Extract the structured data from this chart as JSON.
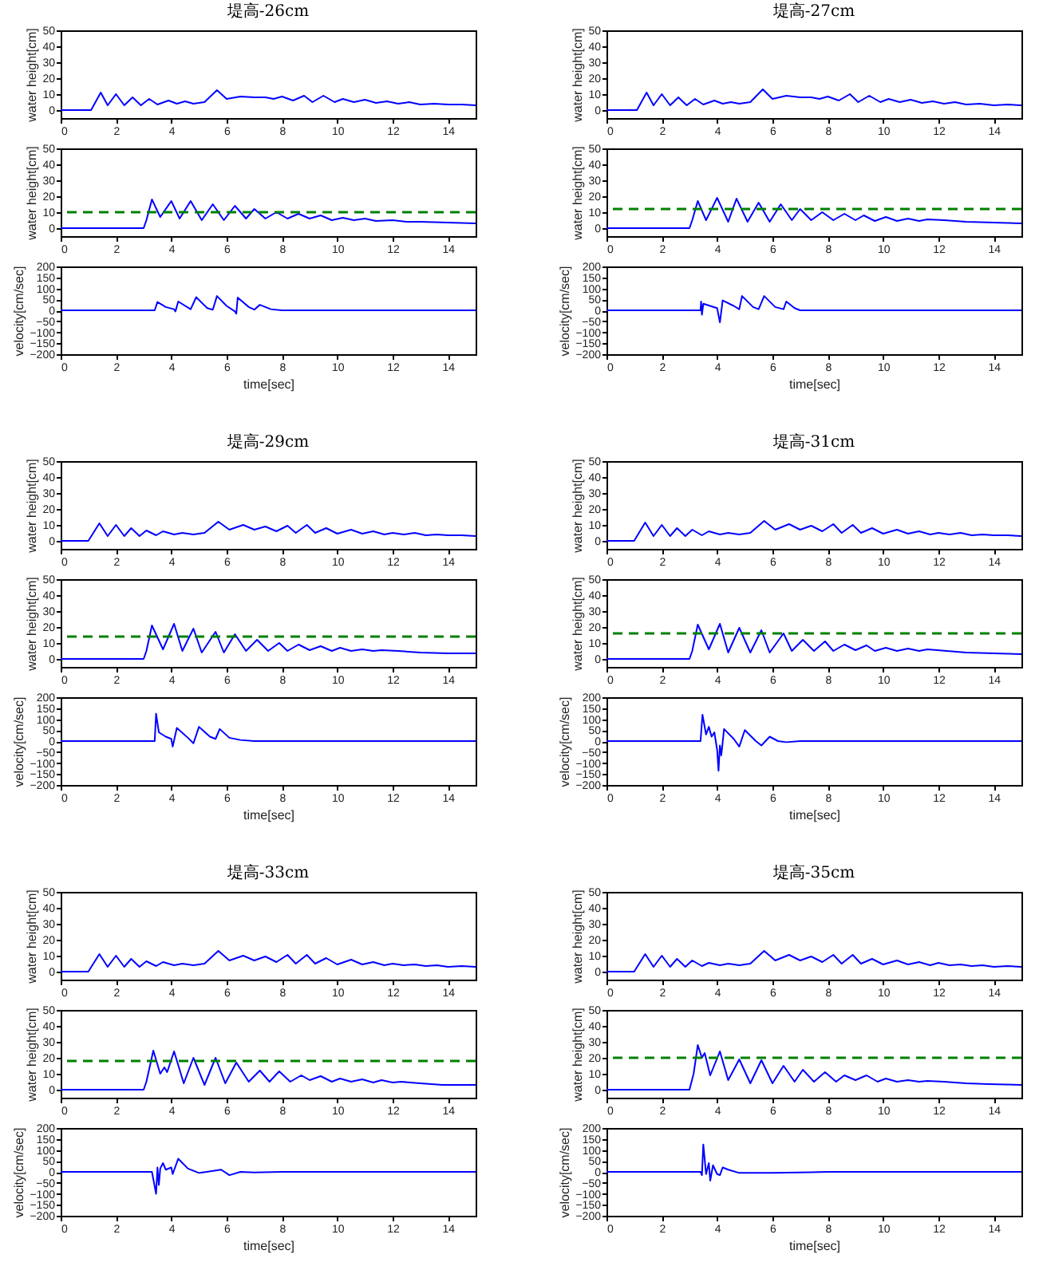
{
  "chart_data": [
    {
      "type": "line",
      "title": "堤高-26cm",
      "ylabel": "water height[cm]",
      "xlim": [
        0,
        15
      ],
      "xticks": [
        0,
        2,
        4,
        6,
        8,
        10,
        12,
        14
      ],
      "ylim": [
        -5,
        50
      ],
      "yticks": [
        0,
        10,
        20,
        30,
        40,
        50
      ],
      "x": [
        0,
        1.1,
        1.45,
        1.7,
        2.0,
        2.3,
        2.6,
        2.9,
        3.2,
        3.5,
        3.9,
        4.2,
        4.5,
        4.8,
        5.2,
        5.65,
        6.0,
        6.5,
        7.0,
        7.4,
        7.7,
        8.0,
        8.4,
        8.8,
        9.1,
        9.5,
        9.9,
        10.2,
        10.6,
        11.0,
        11.4,
        11.8,
        12.2,
        12.6,
        13.0,
        13.5,
        14,
        14.5,
        15
      ],
      "series": [
        {
          "color": "#0000ff",
          "values": [
            0,
            0,
            11,
            3,
            10,
            3,
            8,
            3,
            7,
            3.5,
            6,
            4,
            5.5,
            4,
            5,
            12.5,
            7,
            8.5,
            8,
            8,
            7,
            8.5,
            6,
            9,
            5,
            9,
            5,
            7,
            5,
            6.5,
            4.5,
            5.5,
            4,
            5,
            3.5,
            4,
            3.5,
            3.5,
            3
          ]
        }
      ]
    },
    {
      "type": "line",
      "ylabel": "water height[cm]",
      "xlim": [
        0,
        15
      ],
      "xticks": [
        0,
        2,
        4,
        6,
        8,
        10,
        12,
        14
      ],
      "ylim": [
        -5,
        50
      ],
      "yticks": [
        0,
        10,
        20,
        30,
        40,
        50
      ],
      "x": [
        0,
        3.0,
        3.1,
        3.3,
        3.6,
        4.0,
        4.3,
        4.7,
        5.1,
        5.5,
        5.9,
        6.3,
        6.7,
        7.0,
        7.4,
        7.8,
        8.2,
        8.6,
        9.0,
        9.4,
        9.8,
        10.2,
        10.6,
        11.0,
        11.4,
        12.0,
        12.5,
        13.0,
        14.0,
        15
      ],
      "series": [
        {
          "color": "#0000ff",
          "values": [
            0,
            0,
            5,
            18,
            7,
            17,
            6,
            17,
            5,
            15,
            5,
            14,
            6,
            12,
            6,
            10,
            6,
            9,
            6,
            8,
            5,
            6.5,
            5,
            6,
            4.5,
            5,
            4,
            4,
            3.5,
            3
          ]
        }
      ],
      "ref_lines": [
        {
          "axis": "y",
          "value": 10,
          "color": "#008000",
          "line_style": "dashed"
        }
      ]
    },
    {
      "type": "line",
      "xlabel": "time[sec]",
      "ylabel": "velocity[cm/sec]",
      "xlim": [
        0,
        15
      ],
      "xticks": [
        0,
        2,
        4,
        6,
        8,
        10,
        12,
        14
      ],
      "ylim": [
        -200,
        200
      ],
      "yticks": [
        -200,
        -150,
        -100,
        -50,
        0,
        50,
        100,
        150,
        200
      ],
      "x": [
        0,
        3.4,
        3.5,
        3.8,
        4.1,
        4.15,
        4.25,
        4.7,
        4.9,
        5.3,
        5.5,
        5.65,
        6.0,
        6.3,
        6.35,
        6.4,
        6.8,
        7.0,
        7.2,
        7.6,
        8.0,
        15
      ],
      "series": [
        {
          "color": "#0000ff",
          "values": [
            0,
            0,
            38,
            15,
            5,
            -5,
            40,
            5,
            60,
            10,
            3,
            65,
            20,
            -5,
            -15,
            58,
            15,
            3,
            25,
            5,
            0,
            0
          ]
        }
      ]
    },
    {
      "type": "line",
      "title": "堤高-27cm",
      "ylabel": "water height[cm]",
      "xlim": [
        0,
        15
      ],
      "xticks": [
        0,
        2,
        4,
        6,
        8,
        10,
        12,
        14
      ],
      "ylim": [
        -5,
        50
      ],
      "yticks": [
        0,
        10,
        20,
        30,
        40,
        50
      ],
      "x": [
        0,
        1.1,
        1.45,
        1.7,
        2.0,
        2.3,
        2.6,
        2.9,
        3.2,
        3.5,
        3.9,
        4.2,
        4.5,
        4.8,
        5.2,
        5.65,
        6.0,
        6.5,
        7.0,
        7.4,
        7.7,
        8.0,
        8.4,
        8.8,
        9.1,
        9.5,
        9.9,
        10.2,
        10.6,
        11.0,
        11.4,
        11.8,
        12.2,
        12.6,
        13.0,
        13.5,
        14,
        14.5,
        15
      ],
      "series": [
        {
          "color": "#0000ff",
          "values": [
            0,
            0,
            11,
            3,
            10,
            3,
            8,
            3,
            7,
            3.5,
            6,
            4,
            5,
            4,
            5,
            13,
            7,
            9,
            8,
            8,
            7,
            8.5,
            6,
            10,
            5,
            9,
            5,
            7,
            5,
            6.5,
            4.5,
            5.5,
            4,
            5,
            3.5,
            4,
            3,
            3.5,
            3
          ]
        }
      ]
    },
    {
      "type": "line",
      "ylabel": "water height[cm]",
      "xlim": [
        0,
        15
      ],
      "xticks": [
        0,
        2,
        4,
        6,
        8,
        10,
        12,
        14
      ],
      "ylim": [
        -5,
        50
      ],
      "yticks": [
        0,
        10,
        20,
        30,
        40,
        50
      ],
      "x": [
        0,
        3.0,
        3.1,
        3.3,
        3.6,
        4.0,
        4.4,
        4.7,
        5.1,
        5.5,
        5.9,
        6.3,
        6.7,
        7.0,
        7.4,
        7.8,
        8.2,
        8.6,
        9.0,
        9.3,
        9.7,
        10.1,
        10.5,
        10.9,
        11.3,
        11.6,
        12.2,
        13.0,
        14.0,
        15
      ],
      "series": [
        {
          "color": "#0000ff",
          "values": [
            0,
            0,
            5,
            17,
            5,
            19,
            4,
            18.5,
            4,
            16,
            4,
            15,
            5,
            12,
            5,
            10,
            5,
            9,
            5,
            8,
            4.5,
            7,
            4.5,
            6,
            4.5,
            5.5,
            5,
            4,
            3.5,
            3
          ]
        }
      ],
      "ref_lines": [
        {
          "axis": "y",
          "value": 12,
          "color": "#008000",
          "line_style": "dashed"
        }
      ]
    },
    {
      "type": "line",
      "xlabel": "time[sec]",
      "ylabel": "velocity[cm/sec]",
      "xlim": [
        0,
        15
      ],
      "xticks": [
        0,
        2,
        4,
        6,
        8,
        10,
        12,
        14
      ],
      "ylim": [
        -200,
        200
      ],
      "yticks": [
        -200,
        -150,
        -100,
        -50,
        0,
        50,
        100,
        150,
        200
      ],
      "x": [
        0,
        3.4,
        3.42,
        3.45,
        3.5,
        4.0,
        4.1,
        4.2,
        4.6,
        4.8,
        4.9,
        5.3,
        5.5,
        5.7,
        6.1,
        6.4,
        6.5,
        6.8,
        7.0,
        15
      ],
      "series": [
        {
          "color": "#0000ff",
          "values": [
            0,
            0,
            40,
            -20,
            30,
            10,
            -55,
            45,
            20,
            5,
            65,
            15,
            5,
            65,
            15,
            5,
            40,
            10,
            0,
            0
          ]
        }
      ]
    },
    {
      "type": "line",
      "title": "堤高-29cm",
      "ylabel": "water height[cm]",
      "xlim": [
        0,
        15
      ],
      "xticks": [
        0,
        2,
        4,
        6,
        8,
        10,
        12,
        14
      ],
      "ylim": [
        -5,
        50
      ],
      "yticks": [
        0,
        10,
        20,
        30,
        40,
        50
      ],
      "x": [
        0,
        1.0,
        1.4,
        1.7,
        2.0,
        2.3,
        2.55,
        2.85,
        3.1,
        3.45,
        3.7,
        4.1,
        4.4,
        4.8,
        5.2,
        5.7,
        6.1,
        6.6,
        7.0,
        7.4,
        7.8,
        8.2,
        8.5,
        8.9,
        9.2,
        9.6,
        10.0,
        10.5,
        10.9,
        11.3,
        11.7,
        12.0,
        12.4,
        12.8,
        13.2,
        13.6,
        14.0,
        14.5,
        15
      ],
      "series": [
        {
          "color": "#0000ff",
          "values": [
            0,
            0,
            11,
            3,
            10,
            3,
            8,
            3,
            6.5,
            3.5,
            6,
            4,
            5,
            4,
            5,
            12,
            7,
            10,
            7,
            9,
            6,
            9.5,
            5,
            10,
            5,
            8,
            4.5,
            7,
            4.5,
            6,
            4,
            5,
            4,
            5,
            3.5,
            4,
            3.5,
            3.5,
            3
          ]
        }
      ]
    },
    {
      "type": "line",
      "ylabel": "water height[cm]",
      "xlim": [
        0,
        15
      ],
      "xticks": [
        0,
        2,
        4,
        6,
        8,
        10,
        12,
        14
      ],
      "ylim": [
        -5,
        50
      ],
      "yticks": [
        0,
        10,
        20,
        30,
        40,
        50
      ],
      "x": [
        0,
        3.0,
        3.1,
        3.3,
        3.7,
        4.1,
        4.4,
        4.8,
        5.1,
        5.6,
        5.9,
        6.3,
        6.7,
        7.1,
        7.5,
        7.9,
        8.2,
        8.6,
        9.0,
        9.4,
        9.8,
        10.1,
        10.5,
        10.9,
        11.3,
        11.6,
        12.2,
        13.0,
        14.0,
        15
      ],
      "series": [
        {
          "color": "#0000ff",
          "values": [
            0,
            0,
            5,
            21,
            6,
            22,
            5,
            19,
            4,
            17,
            4,
            15.5,
            5,
            12,
            5,
            10,
            5,
            9,
            5.5,
            8,
            5,
            7,
            5,
            6,
            5,
            5.5,
            5,
            4,
            3.5,
            3.5
          ]
        }
      ],
      "ref_lines": [
        {
          "axis": "y",
          "value": 14,
          "color": "#008000",
          "line_style": "dashed"
        }
      ]
    },
    {
      "type": "line",
      "xlabel": "time[sec]",
      "ylabel": "velocity[cm/sec]",
      "xlim": [
        0,
        15
      ],
      "xticks": [
        0,
        2,
        4,
        6,
        8,
        10,
        12,
        14
      ],
      "ylim": [
        -200,
        200
      ],
      "yticks": [
        -200,
        -150,
        -100,
        -50,
        0,
        50,
        100,
        150,
        200
      ],
      "x": [
        0,
        3.4,
        3.45,
        3.55,
        3.8,
        4.0,
        4.05,
        4.2,
        4.6,
        4.8,
        5.0,
        5.4,
        5.6,
        5.75,
        6.1,
        6.5,
        7.0,
        15
      ],
      "series": [
        {
          "color": "#0000ff",
          "values": [
            0,
            0,
            125,
            40,
            20,
            10,
            -25,
            60,
            15,
            -10,
            65,
            20,
            10,
            55,
            15,
            5,
            0,
            0
          ]
        }
      ]
    },
    {
      "type": "line",
      "title": "堤高-31cm",
      "ylabel": "water height[cm]",
      "xlim": [
        0,
        15
      ],
      "xticks": [
        0,
        2,
        4,
        6,
        8,
        10,
        12,
        14
      ],
      "ylim": [
        -5,
        50
      ],
      "yticks": [
        0,
        10,
        20,
        30,
        40,
        50
      ],
      "x": [
        0,
        1.0,
        1.4,
        1.7,
        2.0,
        2.3,
        2.55,
        2.85,
        3.1,
        3.45,
        3.7,
        4.1,
        4.4,
        4.8,
        5.2,
        5.7,
        6.1,
        6.6,
        7.0,
        7.4,
        7.8,
        8.2,
        8.5,
        8.9,
        9.2,
        9.6,
        10.0,
        10.5,
        10.9,
        11.3,
        11.7,
        12.0,
        12.4,
        12.8,
        13.2,
        13.6,
        14.0,
        14.5,
        15
      ],
      "series": [
        {
          "color": "#0000ff",
          "values": [
            0,
            0,
            11.5,
            3,
            10,
            3,
            8,
            3,
            7,
            3.5,
            6,
            4,
            5,
            4,
            5,
            12.5,
            7,
            10.5,
            7,
            9.5,
            6,
            10.5,
            5,
            10,
            5,
            8,
            4.5,
            7,
            4.5,
            6,
            4,
            5,
            4,
            5,
            3.5,
            4,
            3.5,
            3.5,
            3
          ]
        }
      ]
    },
    {
      "type": "line",
      "ylabel": "water height[cm]",
      "xlim": [
        0,
        15
      ],
      "xticks": [
        0,
        2,
        4,
        6,
        8,
        10,
        12,
        14
      ],
      "ylim": [
        -5,
        50
      ],
      "yticks": [
        0,
        10,
        20,
        30,
        40,
        50
      ],
      "x": [
        0,
        3.0,
        3.1,
        3.3,
        3.7,
        4.1,
        4.4,
        4.8,
        5.2,
        5.6,
        5.9,
        6.4,
        6.7,
        7.1,
        7.5,
        7.9,
        8.2,
        8.6,
        9.0,
        9.4,
        9.7,
        10.1,
        10.5,
        10.9,
        11.3,
        11.6,
        12.3,
        13.0,
        14.0,
        15
      ],
      "series": [
        {
          "color": "#0000ff",
          "values": [
            0,
            0,
            5,
            21.5,
            6,
            22,
            4,
            19.5,
            4,
            18,
            4,
            16,
            5,
            12,
            5,
            11,
            5,
            9,
            5.5,
            8.5,
            5,
            7,
            5,
            6.5,
            5,
            6,
            5,
            4,
            3.5,
            3
          ]
        }
      ],
      "ref_lines": [
        {
          "axis": "y",
          "value": 16,
          "color": "#008000",
          "line_style": "dashed"
        }
      ]
    },
    {
      "type": "line",
      "xlabel": "time[sec]",
      "ylabel": "velocity[cm/sec]",
      "xlim": [
        0,
        15
      ],
      "xticks": [
        0,
        2,
        4,
        6,
        8,
        10,
        12,
        14
      ],
      "ylim": [
        -200,
        200
      ],
      "yticks": [
        -200,
        -150,
        -100,
        -50,
        0,
        50,
        100,
        150,
        200
      ],
      "x": [
        0,
        3.4,
        3.47,
        3.6,
        3.7,
        3.8,
        3.9,
        4.0,
        4.05,
        4.1,
        4.15,
        4.25,
        4.6,
        4.8,
        5.0,
        5.4,
        5.6,
        5.9,
        6.2,
        6.5,
        7.0,
        15
      ],
      "series": [
        {
          "color": "#0000ff",
          "values": [
            0,
            0,
            120,
            30,
            65,
            20,
            40,
            -40,
            -135,
            -20,
            -65,
            55,
            10,
            -25,
            50,
            0,
            -20,
            20,
            0,
            -5,
            0,
            0
          ]
        }
      ]
    },
    {
      "type": "line",
      "title": "堤高-33cm",
      "ylabel": "water height[cm]",
      "xlim": [
        0,
        15
      ],
      "xticks": [
        0,
        2,
        4,
        6,
        8,
        10,
        12,
        14
      ],
      "ylim": [
        -5,
        50
      ],
      "yticks": [
        0,
        10,
        20,
        30,
        40,
        50
      ],
      "x": [
        0,
        1.0,
        1.4,
        1.7,
        2.0,
        2.3,
        2.55,
        2.85,
        3.1,
        3.45,
        3.7,
        4.1,
        4.4,
        4.8,
        5.2,
        5.7,
        6.1,
        6.6,
        7.0,
        7.4,
        7.8,
        8.2,
        8.5,
        8.9,
        9.2,
        9.6,
        10.0,
        10.5,
        10.9,
        11.3,
        11.7,
        12.0,
        12.4,
        12.8,
        13.2,
        13.6,
        14.0,
        14.5,
        15
      ],
      "series": [
        {
          "color": "#0000ff",
          "values": [
            0,
            0,
            11,
            3,
            10,
            3,
            8,
            3,
            6.5,
            3.5,
            6,
            4,
            5,
            4,
            5,
            13,
            7,
            10,
            7,
            9.5,
            6,
            10.5,
            5,
            10.5,
            5,
            8.5,
            4.5,
            7.5,
            4.5,
            6,
            4,
            5,
            4,
            4.5,
            3.5,
            4,
            3,
            3.5,
            3
          ]
        }
      ]
    },
    {
      "type": "line",
      "ylabel": "water height[cm]",
      "xlim": [
        0,
        15
      ],
      "xticks": [
        0,
        2,
        4,
        6,
        8,
        10,
        12,
        14
      ],
      "ylim": [
        -5,
        50
      ],
      "yticks": [
        0,
        10,
        20,
        30,
        40,
        50
      ],
      "x": [
        0,
        3.0,
        3.1,
        3.35,
        3.6,
        3.75,
        3.85,
        4.1,
        4.45,
        4.8,
        5.2,
        5.6,
        5.95,
        6.35,
        6.8,
        7.2,
        7.55,
        7.9,
        8.3,
        8.7,
        9.0,
        9.4,
        9.8,
        10.1,
        10.5,
        10.9,
        11.3,
        11.6,
        12.0,
        12.3,
        13.0,
        13.8,
        15
      ],
      "series": [
        {
          "color": "#0000ff",
          "values": [
            0,
            0,
            5,
            24.5,
            10,
            14,
            11,
            24,
            4,
            20,
            3,
            20,
            4,
            17,
            5,
            12,
            5,
            11.5,
            5,
            9,
            6,
            8.5,
            5,
            7,
            5,
            6.5,
            4.5,
            6,
            4.5,
            5,
            4,
            3,
            3
          ]
        }
      ],
      "ref_lines": [
        {
          "axis": "y",
          "value": 18,
          "color": "#008000",
          "line_style": "dashed"
        }
      ]
    },
    {
      "type": "line",
      "xlabel": "time[sec]",
      "ylabel": "velocity[cm/sec]",
      "xlim": [
        0,
        15
      ],
      "xticks": [
        0,
        2,
        4,
        6,
        8,
        10,
        12,
        14
      ],
      "ylim": [
        -200,
        200
      ],
      "yticks": [
        -200,
        -150,
        -100,
        -50,
        0,
        50,
        100,
        150,
        200
      ],
      "x": [
        0,
        3.3,
        3.45,
        3.5,
        3.55,
        3.6,
        3.7,
        3.8,
        4.0,
        4.05,
        4.25,
        4.6,
        5.0,
        5.8,
        6.1,
        6.5,
        7.0,
        8.0,
        15
      ],
      "series": [
        {
          "color": "#0000ff",
          "values": [
            0,
            0,
            -100,
            20,
            -60,
            15,
            40,
            10,
            20,
            -10,
            60,
            15,
            -5,
            10,
            -15,
            0,
            -3,
            0,
            0
          ]
        }
      ]
    },
    {
      "type": "line",
      "title": "堤高-35cm",
      "ylabel": "water height[cm]",
      "xlim": [
        0,
        15
      ],
      "xticks": [
        0,
        2,
        4,
        6,
        8,
        10,
        12,
        14
      ],
      "ylim": [
        -5,
        50
      ],
      "yticks": [
        0,
        10,
        20,
        30,
        40,
        50
      ],
      "x": [
        0,
        1.0,
        1.4,
        1.7,
        2.0,
        2.3,
        2.55,
        2.85,
        3.1,
        3.45,
        3.7,
        4.1,
        4.4,
        4.8,
        5.2,
        5.7,
        6.1,
        6.6,
        7.0,
        7.4,
        7.8,
        8.2,
        8.5,
        8.9,
        9.2,
        9.6,
        10.0,
        10.5,
        10.9,
        11.3,
        11.7,
        12.0,
        12.4,
        12.8,
        13.2,
        13.6,
        14.0,
        14.5,
        15
      ],
      "series": [
        {
          "color": "#0000ff",
          "values": [
            0,
            0,
            11,
            3,
            10,
            3,
            8,
            3,
            7,
            3.5,
            5.5,
            4,
            5,
            4,
            5,
            13,
            7,
            10.5,
            7,
            9.5,
            6,
            10.5,
            5,
            10.5,
            5,
            8,
            4.5,
            7,
            4.5,
            6,
            4,
            5.5,
            4,
            4.5,
            3.5,
            4,
            3,
            3.5,
            3
          ]
        }
      ]
    },
    {
      "type": "line",
      "ylabel": "water height[cm]",
      "xlim": [
        0,
        15
      ],
      "xticks": [
        0,
        2,
        4,
        6,
        8,
        10,
        12,
        14
      ],
      "ylim": [
        -5,
        50
      ],
      "yticks": [
        0,
        10,
        20,
        30,
        40,
        50
      ],
      "x": [
        0,
        3.0,
        3.15,
        3.3,
        3.45,
        3.55,
        3.75,
        4.1,
        4.4,
        4.8,
        5.2,
        5.6,
        6.0,
        6.4,
        6.8,
        7.1,
        7.5,
        7.9,
        8.3,
        8.6,
        9.0,
        9.4,
        9.8,
        10.1,
        10.5,
        10.9,
        11.3,
        11.6,
        12.2,
        13.0,
        13.8,
        15
      ],
      "series": [
        {
          "color": "#0000ff",
          "values": [
            0,
            0,
            10,
            28,
            20,
            23,
            9,
            24,
            6,
            19,
            4,
            18.5,
            4,
            15,
            5,
            12.5,
            5,
            11,
            5,
            9,
            6,
            9,
            5,
            7,
            5,
            6,
            5,
            5.5,
            5,
            4,
            3.5,
            3
          ]
        }
      ],
      "ref_lines": [
        {
          "axis": "y",
          "value": 20,
          "color": "#008000",
          "line_style": "dashed"
        }
      ]
    },
    {
      "type": "line",
      "xlabel": "time[sec]",
      "ylabel": "velocity[cm/sec]",
      "xlim": [
        0,
        15
      ],
      "xticks": [
        0,
        2,
        4,
        6,
        8,
        10,
        12,
        14
      ],
      "ylim": [
        -200,
        200
      ],
      "yticks": [
        -200,
        -150,
        -100,
        -50,
        0,
        50,
        100,
        150,
        200
      ],
      "x": [
        0,
        3.4,
        3.45,
        3.5,
        3.6,
        3.7,
        3.75,
        3.85,
        4.0,
        4.1,
        4.2,
        4.4,
        4.8,
        6.0,
        8.0,
        15
      ],
      "series": [
        {
          "color": "#0000ff",
          "values": [
            0,
            0,
            -15,
            125,
            -10,
            40,
            -40,
            30,
            -10,
            -15,
            20,
            10,
            -5,
            -5,
            0,
            0
          ]
        }
      ]
    }
  ]
}
